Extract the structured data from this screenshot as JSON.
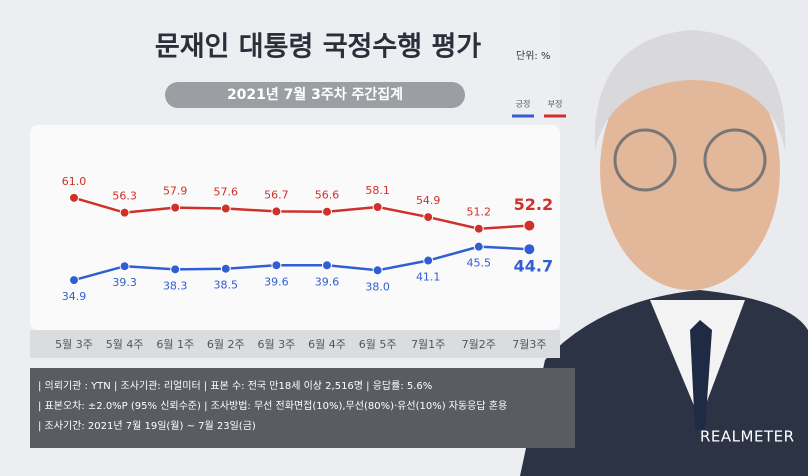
{
  "chart_data": {
    "type": "line",
    "title": "문재인 대통령 국정수행 평가",
    "unit": "단위: %",
    "subtitle": "2021년 7월 3주차 주간집계",
    "categories": [
      "5월 3주",
      "5월 4주",
      "6월 1주",
      "6월 2주",
      "6월 3주",
      "6월 4주",
      "6월 5주",
      "7월1주",
      "7월2주",
      "7월3주"
    ],
    "series": [
      {
        "name": "긍정",
        "color": "#2f5fd0",
        "values": [
          34.9,
          39.3,
          38.3,
          38.5,
          39.6,
          39.6,
          38,
          41.1,
          45.5,
          44.7
        ],
        "value_labels": [
          "34.9",
          "39.3",
          "38.3",
          "38.5",
          "39.6",
          "39.6",
          "38.0",
          "41.1",
          "45.5",
          "44.7"
        ]
      },
      {
        "name": "부정",
        "color": "#d0302a",
        "values": [
          61,
          56.3,
          57.9,
          57.6,
          56.7,
          56.6,
          58.1,
          54.9,
          51.2,
          52.2
        ],
        "value_labels": [
          "61.0",
          "56.3",
          "57.9",
          "57.6",
          "56.7",
          "56.6",
          "58.1",
          "54.9",
          "51.2",
          "52.2"
        ]
      }
    ]
  },
  "footer": [
    "| 의뢰기관 : YTN   | 조사기관: 리얼미터   | 표본 수: 전국 만18세 이상 2,516명   | 응답률: 5.6%",
    "| 표본오차: ±2.0%P (95% 신뢰수준)   | 조사방법: 무선 전화면접(10%),무선(80%)·유선(10%) 자동응답 혼용",
    "| 조사기간: 2021년 7월 19일(월) ~ 7월 23일(금)"
  ],
  "brand": "REALMETER"
}
